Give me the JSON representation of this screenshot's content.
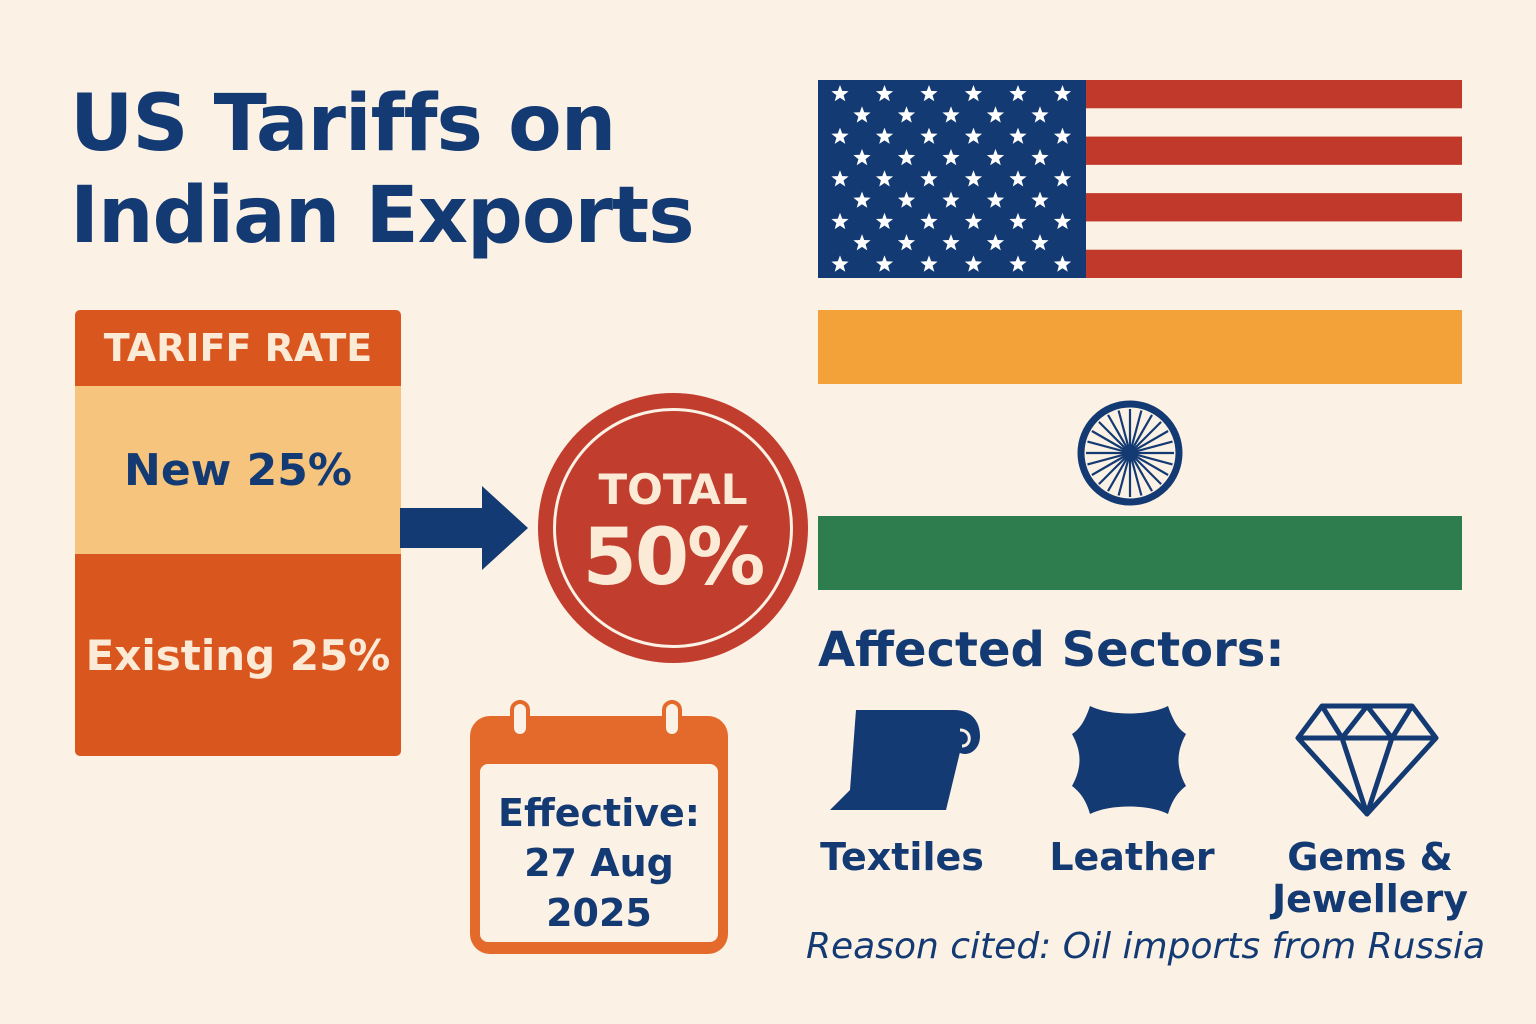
{
  "title": {
    "line1": "US Tariffs on",
    "line2": "Indian Exports"
  },
  "tariff": {
    "header": "TARIFF RATE",
    "new": "New 25%",
    "existing": "Existing 25%"
  },
  "total": {
    "label": "TOTAL",
    "value": "50%"
  },
  "calendar": {
    "line1": "Effective:",
    "line2": "27 Aug",
    "line3": "2025"
  },
  "sectors": {
    "title": "Affected Sectors:",
    "items": [
      {
        "label": "Textiles",
        "icon": "fabric-roll-icon"
      },
      {
        "label": "Leather",
        "icon": "leather-hide-icon"
      },
      {
        "label_line1": "Gems &",
        "label_line2": "Jewellery",
        "icon": "diamond-icon"
      }
    ]
  },
  "reason": "Reason cited: Oil imports from Russia",
  "colors": {
    "navy": "#133a73",
    "orange": "#d9561e",
    "light_orange": "#f7c47e",
    "red": "#c13d2e",
    "saffron": "#f3a23a",
    "green": "#2e7d4f",
    "us_red": "#c0392b",
    "background": "#fbf1e4"
  }
}
